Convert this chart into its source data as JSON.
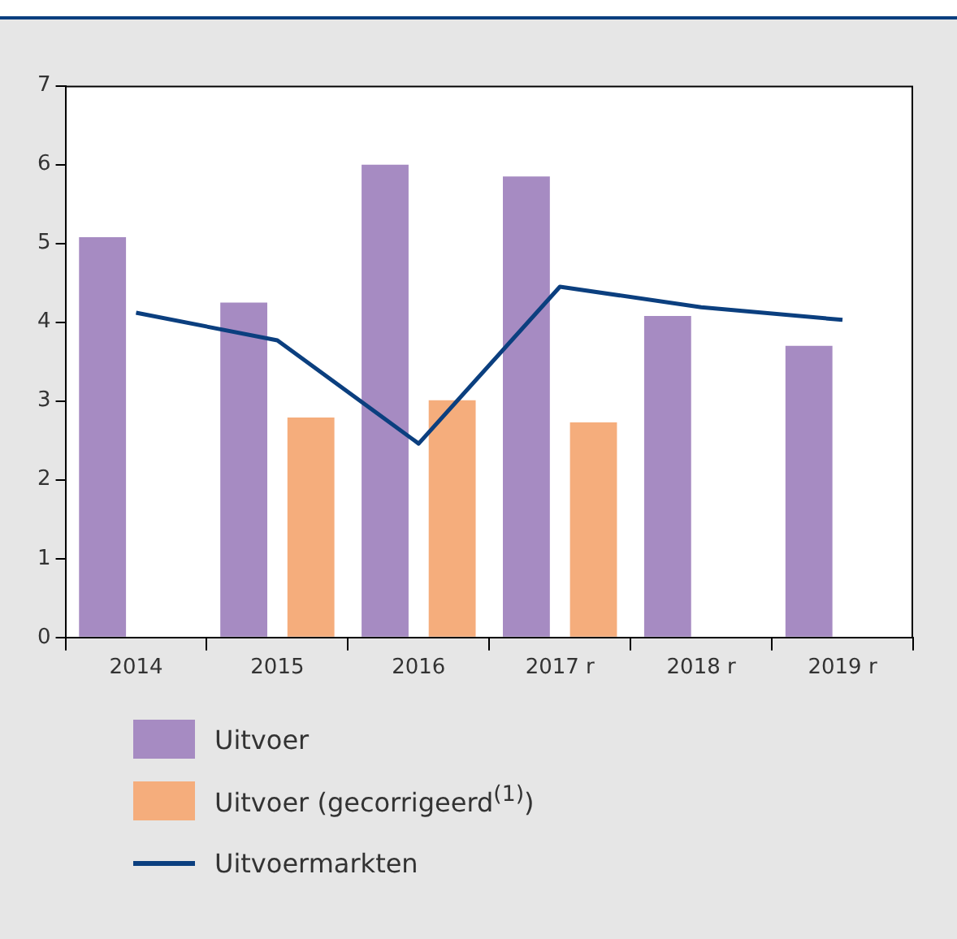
{
  "chart_data": {
    "type": "bar",
    "categories": [
      "2014",
      "2015",
      "2016",
      "2017 r",
      "2018 r",
      "2019 r"
    ],
    "series": [
      {
        "name": "Uitvoer",
        "color": "#a68bc2",
        "values": [
          5.08,
          4.25,
          6.0,
          5.85,
          4.08,
          3.7
        ]
      },
      {
        "name": "Uitvoer (gecorrigeerd$^{(1)}$)",
        "color": "#f5ad7c",
        "values": [
          null,
          2.79,
          3.01,
          2.73,
          null,
          null
        ]
      },
      {
        "name": "Uitvoermarkten",
        "type": "line",
        "color": "#0b3f7f",
        "values": [
          4.12,
          3.77,
          2.46,
          4.45,
          4.19,
          4.03
        ]
      }
    ],
    "ylim": [
      0,
      7
    ],
    "yticks": [
      0,
      1,
      2,
      3,
      4,
      5,
      6,
      7
    ],
    "grid": false,
    "legend": "bottom",
    "marker": "none"
  }
}
